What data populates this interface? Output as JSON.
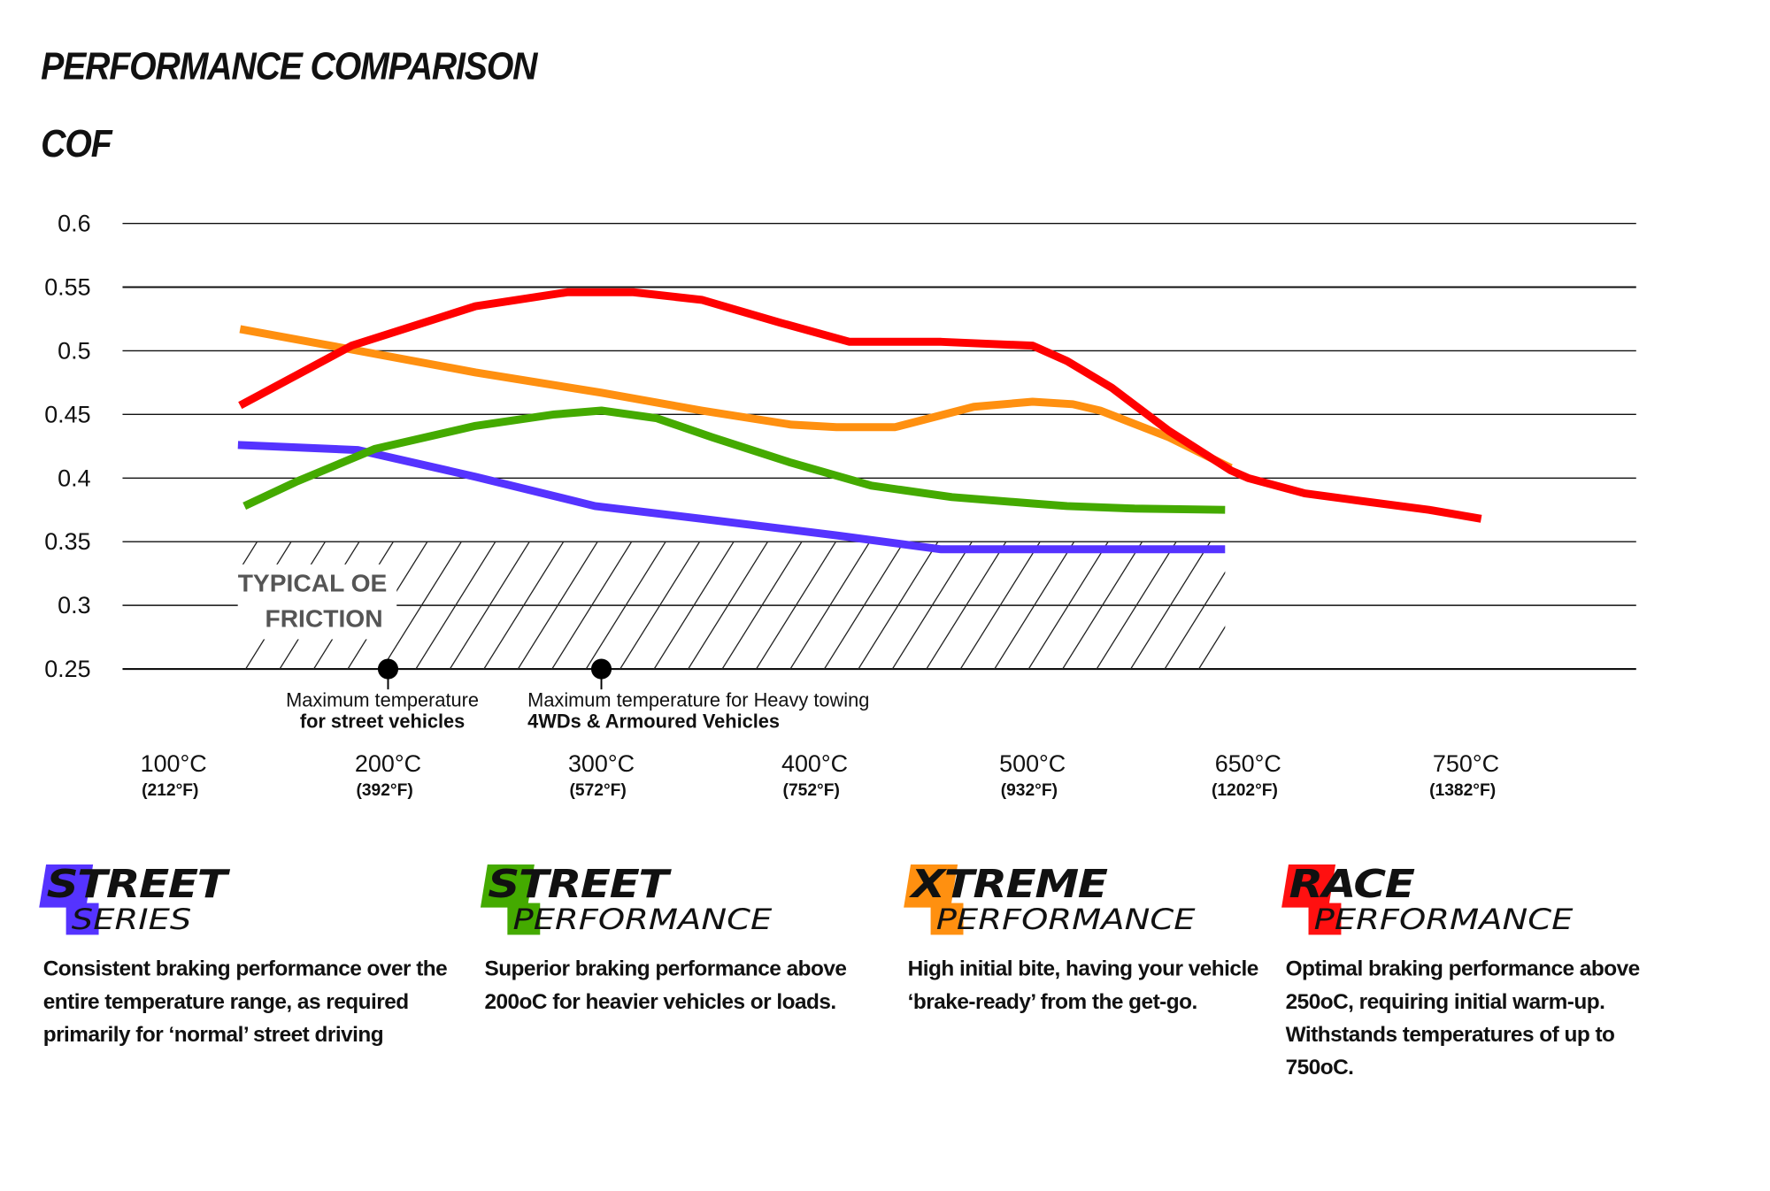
{
  "header": {
    "title": "PERFORMANCE COMPARISON",
    "subtitle": "COF"
  },
  "chart_data": {
    "type": "line",
    "title": "PERFORMANCE COMPARISON",
    "ylabel": "COF",
    "ylim": [
      0.25,
      0.6
    ],
    "yticks": [
      "0.6",
      "0.55",
      "0.5",
      "0.45",
      "0.4",
      "0.35",
      "0.3",
      "0.25"
    ],
    "ytick_values": [
      0.6,
      0.55,
      0.5,
      0.45,
      0.4,
      0.35,
      0.3,
      0.25
    ],
    "x_unit": "°C",
    "xticks": [
      {
        "value": 100,
        "c": "100°C",
        "f": "(212°F)"
      },
      {
        "value": 200,
        "c": "200°C",
        "f": "(392°F)"
      },
      {
        "value": 300,
        "c": "300°C",
        "f": "(572°F)"
      },
      {
        "value": 400,
        "c": "400°C",
        "f": "(752°F)"
      },
      {
        "value": 500,
        "c": "500°C",
        "f": "(932°F)"
      },
      {
        "value": 650,
        "c": "650°C",
        "f": "(1202°F)"
      },
      {
        "value": 750,
        "c": "750°C",
        "f": "(1382°F)"
      }
    ],
    "grid": true,
    "series": [
      {
        "key": "street_series",
        "color": "#5533ff",
        "points": [
          [
            130,
            0.426
          ],
          [
            186,
            0.422
          ],
          [
            241,
            0.401
          ],
          [
            297,
            0.378
          ],
          [
            347,
            0.368
          ],
          [
            410,
            0.355
          ],
          [
            458,
            0.344
          ],
          [
            500,
            0.344
          ],
          [
            634,
            0.344
          ]
        ]
      },
      {
        "key": "street_performance",
        "color": "#44aa00",
        "points": [
          [
            133,
            0.378
          ],
          [
            157,
            0.397
          ],
          [
            194,
            0.423
          ],
          [
            241,
            0.441
          ],
          [
            278,
            0.45
          ],
          [
            300,
            0.453
          ],
          [
            326,
            0.447
          ],
          [
            352,
            0.432
          ],
          [
            389,
            0.412
          ],
          [
            426,
            0.394
          ],
          [
            463,
            0.385
          ],
          [
            500,
            0.38
          ],
          [
            524,
            0.378
          ],
          [
            571,
            0.376
          ],
          [
            634,
            0.375
          ]
        ]
      },
      {
        "key": "xtreme_performance",
        "color": "#ff9010",
        "points": [
          [
            131,
            0.517
          ],
          [
            183,
            0.501
          ],
          [
            241,
            0.483
          ],
          [
            300,
            0.467
          ],
          [
            347,
            0.453
          ],
          [
            389,
            0.442
          ],
          [
            410,
            0.44
          ],
          [
            437,
            0.44
          ],
          [
            473,
            0.456
          ],
          [
            500,
            0.46
          ],
          [
            528,
            0.458
          ],
          [
            547,
            0.453
          ],
          [
            595,
            0.432
          ],
          [
            638,
            0.408
          ]
        ]
      },
      {
        "key": "race_performance",
        "color": "#ff0000",
        "points": [
          [
            131,
            0.457
          ],
          [
            183,
            0.504
          ],
          [
            241,
            0.535
          ],
          [
            284,
            0.546
          ],
          [
            315,
            0.546
          ],
          [
            347,
            0.54
          ],
          [
            384,
            0.522
          ],
          [
            416,
            0.507
          ],
          [
            458,
            0.507
          ],
          [
            500,
            0.504
          ],
          [
            524,
            0.492
          ],
          [
            555,
            0.471
          ],
          [
            595,
            0.437
          ],
          [
            638,
            0.406
          ],
          [
            650,
            0.4
          ],
          [
            676,
            0.388
          ],
          [
            702,
            0.382
          ],
          [
            733,
            0.375
          ],
          [
            757,
            0.368
          ]
        ]
      }
    ],
    "typical_oe_region": {
      "label_line1": "TYPICAL OE",
      "label_line2": "FRICTION",
      "x_range": [
        131,
        634
      ],
      "cof_range": [
        0.25,
        0.35
      ]
    },
    "annotations": [
      {
        "x": 200,
        "cof": 0.25,
        "line1": "Maximum temperature",
        "line2": "for street vehicles"
      },
      {
        "x": 300,
        "cof": 0.25,
        "line1": "Maximum temperature for Heavy towing",
        "line2": "4WDs & Armoured Vehicles"
      }
    ]
  },
  "legend": [
    {
      "first": "S",
      "rest": "TREET",
      "sub_first": "S",
      "sub_rest": "ERIES",
      "color": "#5533ff",
      "desc": "Consistent braking performance over the entire temperature range, as required primarily for ‘normal’ street driving"
    },
    {
      "first": "S",
      "rest": "TREET",
      "sub_first": "P",
      "sub_rest": "ERFORMANCE",
      "color": "#44aa00",
      "desc": "Superior braking performance above 200oC for heavier vehicles or loads."
    },
    {
      "first": "X",
      "rest": "TREME",
      "sub_first": "P",
      "sub_rest": "ERFORMANCE",
      "color": "#ff9010",
      "desc": "High initial bite, having your vehicle ‘brake-ready’ from the get-go."
    },
    {
      "first": "R",
      "rest": "ACE",
      "sub_first": "P",
      "sub_rest": "ERFORMANCE",
      "color": "#ff1010",
      "desc": "Optimal braking performance above 250oC, requiring initial warm-up. Withstands temperatures of up to 750oC."
    }
  ]
}
